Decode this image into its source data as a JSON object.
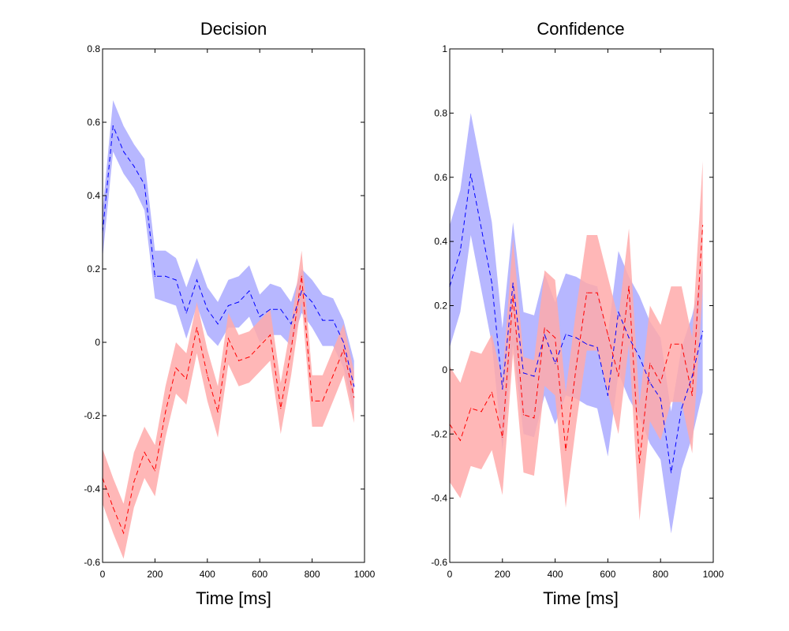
{
  "chart_data": [
    {
      "type": "line",
      "title": "Decision",
      "xlabel": "Time [ms]",
      "ylabel": "",
      "xlim": [
        0,
        1000
      ],
      "ylim": [
        -0.6,
        0.8
      ],
      "xticks": [
        "0",
        "200",
        "400",
        "600",
        "800",
        "1000"
      ],
      "yticks": [
        "-0.6",
        "-0.4",
        "-0.2",
        "0",
        "0.2",
        "0.4",
        "0.6",
        "0.8"
      ],
      "grid": false,
      "x": [
        0,
        40,
        80,
        120,
        160,
        200,
        240,
        280,
        320,
        360,
        400,
        440,
        480,
        520,
        560,
        600,
        640,
        680,
        720,
        760,
        800,
        840,
        880,
        920,
        960
      ],
      "series": [
        {
          "color": "#0000ff",
          "band_color": "#aaaaff",
          "mean": [
            0.3,
            0.59,
            0.52,
            0.48,
            0.43,
            0.18,
            0.18,
            0.17,
            0.08,
            0.17,
            0.09,
            0.05,
            0.1,
            0.11,
            0.14,
            0.07,
            0.09,
            0.09,
            0.05,
            0.14,
            0.11,
            0.06,
            0.06,
            0.0,
            -0.12
          ],
          "upper": [
            0.36,
            0.66,
            0.59,
            0.54,
            0.5,
            0.25,
            0.25,
            0.23,
            0.15,
            0.23,
            0.15,
            0.11,
            0.17,
            0.18,
            0.21,
            0.13,
            0.16,
            0.15,
            0.11,
            0.2,
            0.17,
            0.13,
            0.12,
            0.06,
            -0.05
          ],
          "lower": [
            0.23,
            0.52,
            0.46,
            0.42,
            0.36,
            0.12,
            0.11,
            0.1,
            0.01,
            0.1,
            0.02,
            -0.01,
            0.04,
            0.04,
            0.07,
            0.0,
            0.02,
            0.02,
            -0.01,
            0.08,
            0.04,
            -0.01,
            -0.01,
            -0.07,
            -0.19
          ]
        },
        {
          "color": "#ff0000",
          "band_color": "#ffaaaa",
          "mean": [
            -0.37,
            -0.45,
            -0.52,
            -0.38,
            -0.3,
            -0.35,
            -0.19,
            -0.07,
            -0.1,
            0.04,
            -0.09,
            -0.19,
            0.01,
            -0.05,
            -0.04,
            -0.01,
            0.02,
            -0.18,
            -0.02,
            0.18,
            -0.16,
            -0.16,
            -0.09,
            -0.02,
            -0.15
          ],
          "upper": [
            -0.29,
            -0.37,
            -0.44,
            -0.3,
            -0.23,
            -0.28,
            -0.12,
            0.0,
            -0.03,
            0.11,
            -0.02,
            -0.12,
            0.08,
            0.02,
            0.03,
            0.06,
            0.09,
            -0.11,
            0.05,
            0.25,
            -0.09,
            -0.09,
            -0.02,
            0.05,
            -0.08
          ],
          "lower": [
            -0.44,
            -0.52,
            -0.59,
            -0.45,
            -0.37,
            -0.42,
            -0.26,
            -0.14,
            -0.17,
            -0.03,
            -0.16,
            -0.26,
            -0.06,
            -0.12,
            -0.11,
            -0.08,
            -0.05,
            -0.25,
            -0.09,
            0.11,
            -0.23,
            -0.23,
            -0.16,
            -0.09,
            -0.22
          ]
        }
      ]
    },
    {
      "type": "line",
      "title": "Confidence",
      "xlabel": "Time [ms]",
      "ylabel": "",
      "xlim": [
        0,
        1000
      ],
      "ylim": [
        -0.6,
        1.0
      ],
      "xticks": [
        "0",
        "200",
        "400",
        "600",
        "800",
        "1000"
      ],
      "yticks": [
        "-0.6",
        "-0.4",
        "-0.2",
        "0",
        "0.2",
        "0.4",
        "0.6",
        "0.8",
        "1"
      ],
      "grid": false,
      "x": [
        0,
        40,
        80,
        120,
        160,
        200,
        240,
        280,
        320,
        360,
        400,
        440,
        480,
        520,
        560,
        600,
        640,
        680,
        720,
        760,
        800,
        840,
        880,
        920,
        960
      ],
      "series": [
        {
          "color": "#0000ff",
          "band_color": "#aaaaff",
          "mean": [
            0.26,
            0.37,
            0.61,
            0.44,
            0.27,
            -0.06,
            0.27,
            -0.01,
            -0.02,
            0.11,
            0.02,
            0.11,
            0.1,
            0.08,
            0.07,
            -0.08,
            0.18,
            0.1,
            0.04,
            -0.04,
            -0.09,
            -0.32,
            -0.12,
            -0.02,
            0.12
          ],
          "upper": [
            0.45,
            0.56,
            0.8,
            0.63,
            0.46,
            0.13,
            0.46,
            0.18,
            0.17,
            0.3,
            0.21,
            0.3,
            0.29,
            0.27,
            0.26,
            0.11,
            0.37,
            0.29,
            0.23,
            0.15,
            0.1,
            -0.13,
            0.07,
            0.17,
            0.31
          ],
          "lower": [
            0.07,
            0.18,
            0.42,
            0.25,
            0.08,
            -0.25,
            0.08,
            -0.2,
            -0.21,
            -0.08,
            -0.17,
            -0.08,
            -0.09,
            -0.11,
            -0.12,
            -0.27,
            -0.01,
            -0.09,
            -0.15,
            -0.23,
            -0.28,
            -0.51,
            -0.31,
            -0.21,
            -0.07
          ]
        },
        {
          "color": "#ff0000",
          "band_color": "#ffaaaa",
          "mean": [
            -0.17,
            -0.22,
            -0.12,
            -0.13,
            -0.07,
            -0.21,
            0.23,
            -0.14,
            -0.15,
            0.13,
            0.1,
            -0.25,
            0.01,
            0.24,
            0.24,
            0.11,
            -0.02,
            0.26,
            -0.29,
            0.02,
            -0.04,
            0.08,
            0.08,
            -0.08,
            0.45
          ],
          "upper": [
            0.01,
            -0.04,
            0.06,
            0.05,
            0.11,
            -0.03,
            0.41,
            0.04,
            0.03,
            0.31,
            0.28,
            -0.07,
            0.19,
            0.42,
            0.42,
            0.29,
            0.16,
            0.44,
            -0.11,
            0.2,
            0.14,
            0.26,
            0.26,
            0.1,
            0.65
          ],
          "lower": [
            -0.35,
            -0.4,
            -0.3,
            -0.31,
            -0.25,
            -0.39,
            0.05,
            -0.32,
            -0.33,
            -0.05,
            -0.08,
            -0.43,
            -0.17,
            0.06,
            0.06,
            -0.07,
            -0.2,
            0.08,
            -0.47,
            -0.16,
            -0.22,
            -0.1,
            -0.1,
            -0.26,
            0.25
          ]
        }
      ]
    }
  ]
}
